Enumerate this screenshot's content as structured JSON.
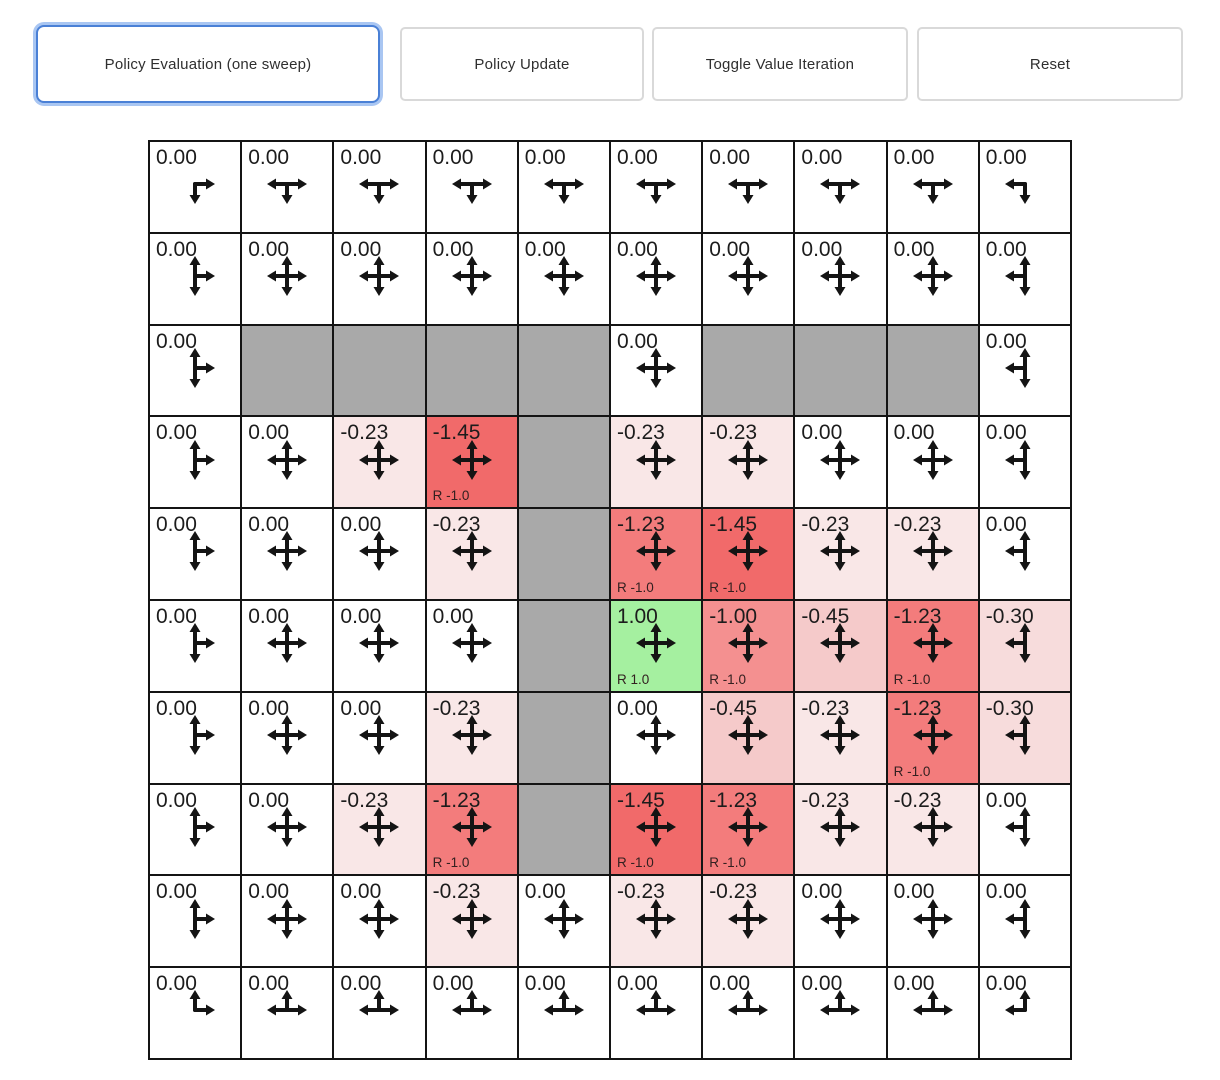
{
  "toolbar": {
    "buttons": [
      {
        "label": "Policy Evaluation (one sweep)",
        "active": true
      },
      {
        "label": "Policy Update",
        "active": false
      },
      {
        "label": "Toggle Value Iteration",
        "active": false
      },
      {
        "label": "Reset",
        "active": false
      }
    ]
  },
  "colors": {
    "wall": "#a9a9a9",
    "grid_line": "#141414",
    "active_button_border": "#4a80d6",
    "active_button_glow": "#a9c6f2",
    "arrow": "#141414",
    "value_colors": {
      "0.00": "#ffffff",
      "-0.23": "#f9e7e7",
      "-0.30": "#f7dcdc",
      "-0.45": "#f5caca",
      "-1.00": "#f49090",
      "-1.23": "#f37c7c",
      "-1.45": "#f16a6a",
      "1.00": "#a5f0a0"
    }
  },
  "grid": {
    "rows": 10,
    "cols": 10,
    "cells": [
      [
        {
          "v": "0.00",
          "arrows": "DR"
        },
        {
          "v": "0.00",
          "arrows": "DLR"
        },
        {
          "v": "0.00",
          "arrows": "DLR"
        },
        {
          "v": "0.00",
          "arrows": "DLR"
        },
        {
          "v": "0.00",
          "arrows": "DLR"
        },
        {
          "v": "0.00",
          "arrows": "DLR"
        },
        {
          "v": "0.00",
          "arrows": "DLR"
        },
        {
          "v": "0.00",
          "arrows": "DLR"
        },
        {
          "v": "0.00",
          "arrows": "DLR"
        },
        {
          "v": "0.00",
          "arrows": "DL"
        }
      ],
      [
        {
          "v": "0.00",
          "arrows": "UDR"
        },
        {
          "v": "0.00",
          "arrows": "UDLR"
        },
        {
          "v": "0.00",
          "arrows": "UDLR"
        },
        {
          "v": "0.00",
          "arrows": "UDLR"
        },
        {
          "v": "0.00",
          "arrows": "UDLR"
        },
        {
          "v": "0.00",
          "arrows": "UDLR"
        },
        {
          "v": "0.00",
          "arrows": "UDLR"
        },
        {
          "v": "0.00",
          "arrows": "UDLR"
        },
        {
          "v": "0.00",
          "arrows": "UDLR"
        },
        {
          "v": "0.00",
          "arrows": "UDL"
        }
      ],
      [
        {
          "v": "0.00",
          "arrows": "UDR"
        },
        {
          "wall": true
        },
        {
          "wall": true
        },
        {
          "wall": true
        },
        {
          "wall": true
        },
        {
          "v": "0.00",
          "arrows": "UDLR"
        },
        {
          "wall": true
        },
        {
          "wall": true
        },
        {
          "wall": true
        },
        {
          "v": "0.00",
          "arrows": "UDL"
        }
      ],
      [
        {
          "v": "0.00",
          "arrows": "UDR"
        },
        {
          "v": "0.00",
          "arrows": "UDLR"
        },
        {
          "v": "-0.23",
          "arrows": "UDLR"
        },
        {
          "v": "-1.45",
          "arrows": "UDLR",
          "r": "R -1.0"
        },
        {
          "wall": true
        },
        {
          "v": "-0.23",
          "arrows": "UDLR"
        },
        {
          "v": "-0.23",
          "arrows": "UDLR"
        },
        {
          "v": "0.00",
          "arrows": "UDLR"
        },
        {
          "v": "0.00",
          "arrows": "UDLR"
        },
        {
          "v": "0.00",
          "arrows": "UDL"
        }
      ],
      [
        {
          "v": "0.00",
          "arrows": "UDR"
        },
        {
          "v": "0.00",
          "arrows": "UDLR"
        },
        {
          "v": "0.00",
          "arrows": "UDLR"
        },
        {
          "v": "-0.23",
          "arrows": "UDLR"
        },
        {
          "wall": true
        },
        {
          "v": "-1.23",
          "arrows": "UDLR",
          "r": "R -1.0"
        },
        {
          "v": "-1.45",
          "arrows": "UDLR",
          "r": "R -1.0"
        },
        {
          "v": "-0.23",
          "arrows": "UDLR"
        },
        {
          "v": "-0.23",
          "arrows": "UDLR"
        },
        {
          "v": "0.00",
          "arrows": "UDL"
        }
      ],
      [
        {
          "v": "0.00",
          "arrows": "UDR"
        },
        {
          "v": "0.00",
          "arrows": "UDLR"
        },
        {
          "v": "0.00",
          "arrows": "UDLR"
        },
        {
          "v": "0.00",
          "arrows": "UDLR"
        },
        {
          "wall": true
        },
        {
          "v": "1.00",
          "arrows": "UDLR",
          "r": "R 1.0"
        },
        {
          "v": "-1.00",
          "arrows": "UDLR",
          "r": "R -1.0"
        },
        {
          "v": "-0.45",
          "arrows": "UDLR"
        },
        {
          "v": "-1.23",
          "arrows": "UDLR",
          "r": "R -1.0"
        },
        {
          "v": "-0.30",
          "arrows": "UDL"
        }
      ],
      [
        {
          "v": "0.00",
          "arrows": "UDR"
        },
        {
          "v": "0.00",
          "arrows": "UDLR"
        },
        {
          "v": "0.00",
          "arrows": "UDLR"
        },
        {
          "v": "-0.23",
          "arrows": "UDLR"
        },
        {
          "wall": true
        },
        {
          "v": "0.00",
          "arrows": "UDLR"
        },
        {
          "v": "-0.45",
          "arrows": "UDLR"
        },
        {
          "v": "-0.23",
          "arrows": "UDLR"
        },
        {
          "v": "-1.23",
          "arrows": "UDLR",
          "r": "R -1.0"
        },
        {
          "v": "-0.30",
          "arrows": "UDL"
        }
      ],
      [
        {
          "v": "0.00",
          "arrows": "UDR"
        },
        {
          "v": "0.00",
          "arrows": "UDLR"
        },
        {
          "v": "-0.23",
          "arrows": "UDLR"
        },
        {
          "v": "-1.23",
          "arrows": "UDLR",
          "r": "R -1.0"
        },
        {
          "wall": true
        },
        {
          "v": "-1.45",
          "arrows": "UDLR",
          "r": "R -1.0"
        },
        {
          "v": "-1.23",
          "arrows": "UDLR",
          "r": "R -1.0"
        },
        {
          "v": "-0.23",
          "arrows": "UDLR"
        },
        {
          "v": "-0.23",
          "arrows": "UDLR"
        },
        {
          "v": "0.00",
          "arrows": "UDL"
        }
      ],
      [
        {
          "v": "0.00",
          "arrows": "UDR"
        },
        {
          "v": "0.00",
          "arrows": "UDLR"
        },
        {
          "v": "0.00",
          "arrows": "UDLR"
        },
        {
          "v": "-0.23",
          "arrows": "UDLR"
        },
        {
          "v": "0.00",
          "arrows": "UDLR"
        },
        {
          "v": "-0.23",
          "arrows": "UDLR"
        },
        {
          "v": "-0.23",
          "arrows": "UDLR"
        },
        {
          "v": "0.00",
          "arrows": "UDLR"
        },
        {
          "v": "0.00",
          "arrows": "UDLR"
        },
        {
          "v": "0.00",
          "arrows": "UDL"
        }
      ],
      [
        {
          "v": "0.00",
          "arrows": "UR"
        },
        {
          "v": "0.00",
          "arrows": "ULR"
        },
        {
          "v": "0.00",
          "arrows": "ULR"
        },
        {
          "v": "0.00",
          "arrows": "ULR"
        },
        {
          "v": "0.00",
          "arrows": "ULR"
        },
        {
          "v": "0.00",
          "arrows": "ULR"
        },
        {
          "v": "0.00",
          "arrows": "ULR"
        },
        {
          "v": "0.00",
          "arrows": "ULR"
        },
        {
          "v": "0.00",
          "arrows": "ULR"
        },
        {
          "v": "0.00",
          "arrows": "UL"
        }
      ]
    ]
  }
}
